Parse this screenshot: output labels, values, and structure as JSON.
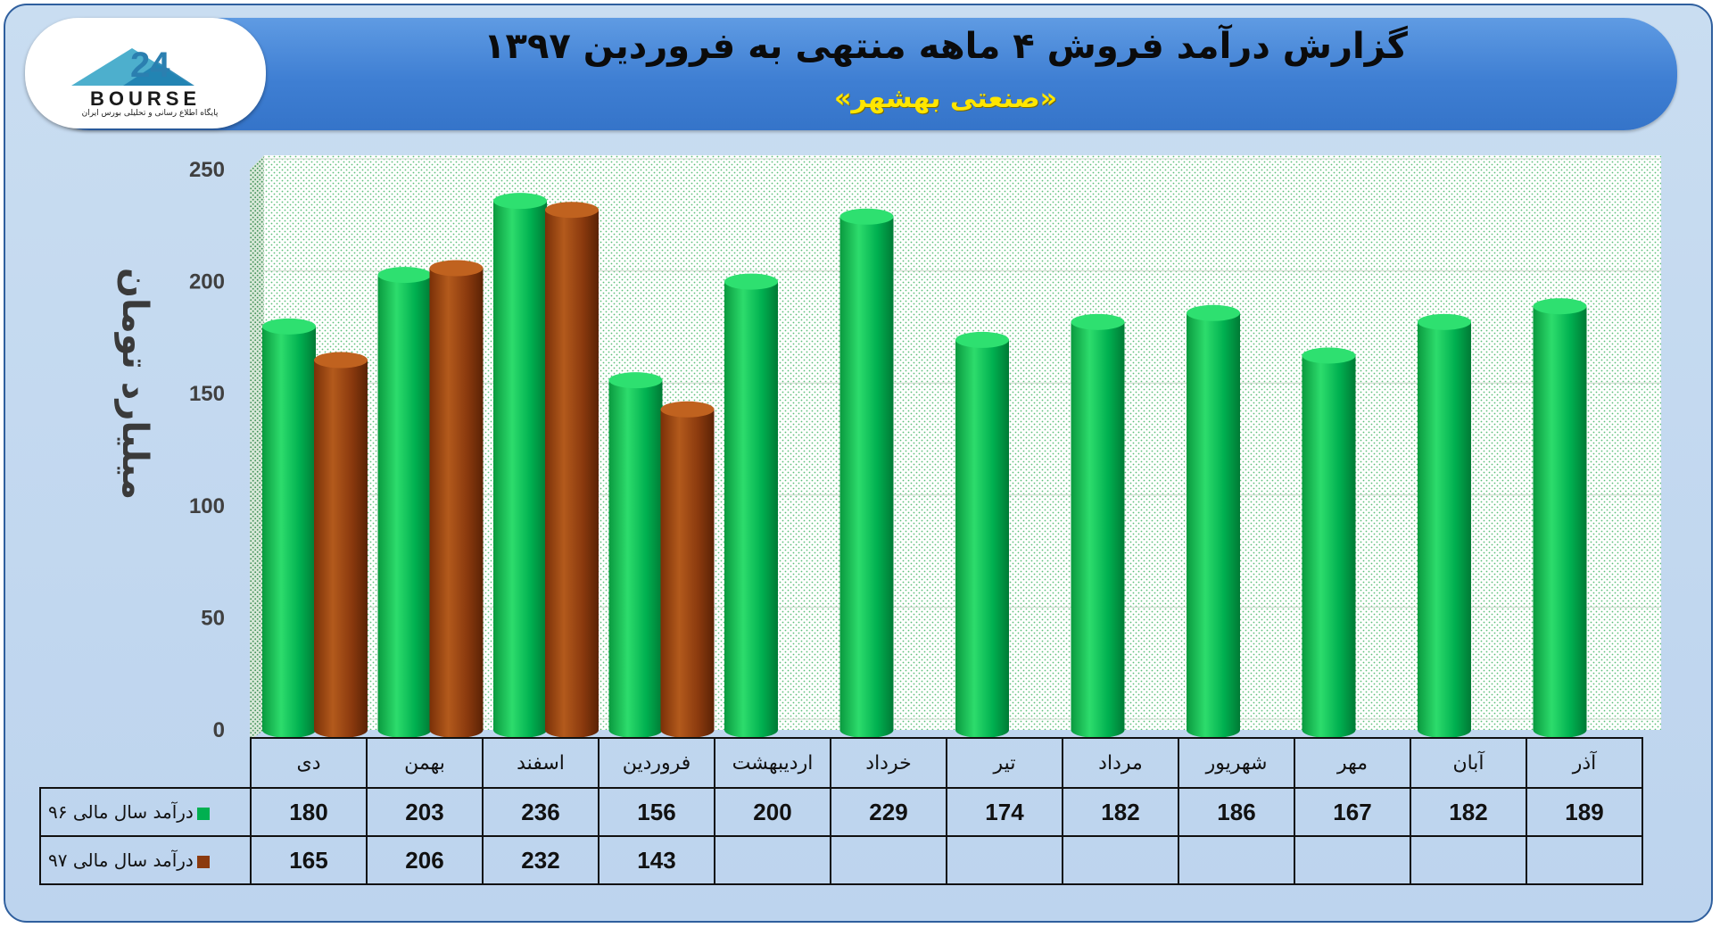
{
  "header": {
    "title": "گزارش درآمد فروش ۴ ماهه منتهی به فروردین ۱۳۹۷",
    "subtitle": "«صنعتی بهشهر»"
  },
  "logo": {
    "name": "BOURSE",
    "number": "24",
    "tagline": "پایگاه اطلاع رسانی و تحلیلی بورس ایران"
  },
  "colors": {
    "series96": "#00b050",
    "series97": "#8b3a0e",
    "banner": "#4a86d6",
    "background": "#c5daf0"
  },
  "chart_data": {
    "type": "bar",
    "ylabel": "میلیارد تومان",
    "ylim": [
      0,
      250
    ],
    "yticks": [
      "0",
      "50",
      "100",
      "150",
      "200",
      "250"
    ],
    "grid": true,
    "categories": [
      "دی",
      "بهمن",
      "اسفند",
      "فروردین",
      "اردیبهشت",
      "خرداد",
      "تیر",
      "مرداد",
      "شهریور",
      "مهر",
      "آبان",
      "آذر"
    ],
    "series": [
      {
        "name": "درآمد سال مالی ۹۶",
        "values": [
          180,
          203,
          236,
          156,
          200,
          229,
          174,
          182,
          186,
          167,
          182,
          189
        ]
      },
      {
        "name": "درآمد سال مالی ۹۷",
        "values": [
          165,
          206,
          232,
          143,
          null,
          null,
          null,
          null,
          null,
          null,
          null,
          null
        ]
      }
    ]
  }
}
